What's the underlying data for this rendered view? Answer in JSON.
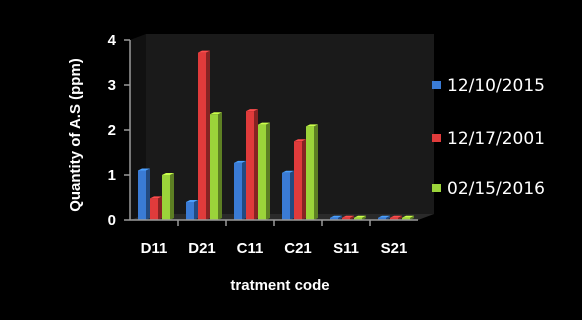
{
  "colors": {
    "background": "#000000",
    "plot_back_wall": "#1a1a1a",
    "plot_floor": "#2a2a2a",
    "axis": "#9a9a9a",
    "text": "#ffffff",
    "series_1": "#3a7bd5",
    "series_2": "#e03b3b",
    "series_3": "#9bd43a"
  },
  "chart_data": {
    "type": "bar",
    "style": "3d-clustered-column",
    "categories": [
      "D11",
      "D21",
      "C11",
      "C21",
      "S11",
      "S21"
    ],
    "series": [
      {
        "name": "12/10/2015",
        "values": [
          1.1,
          0.4,
          1.27,
          1.05,
          0.05,
          0.05
        ]
      },
      {
        "name": "12/17/2001",
        "values": [
          0.48,
          3.72,
          2.42,
          1.75,
          0.05,
          0.05
        ]
      },
      {
        "name": "02/15/2016",
        "values": [
          1.0,
          2.35,
          2.12,
          2.08,
          0.05,
          0.05
        ]
      }
    ],
    "xlabel": "tratment code",
    "ylabel": "Quantity of A.S (ppm)",
    "ylim": [
      0,
      4
    ],
    "yticks": [
      "0",
      "1",
      "2",
      "3",
      "4"
    ],
    "grid": false,
    "legend_position": "right"
  }
}
